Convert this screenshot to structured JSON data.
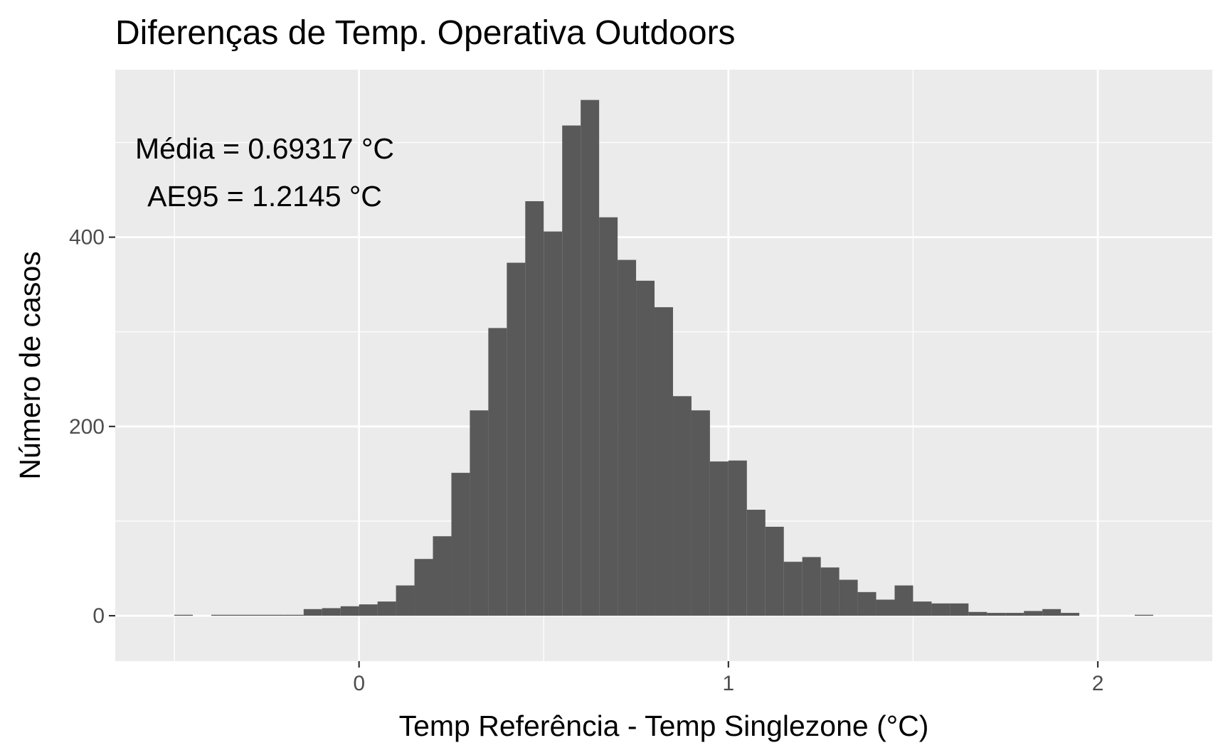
{
  "chart_data": {
    "type": "bar",
    "title": "Diferenças de Temp. Operativa Outdoors",
    "xlabel": "Temp Referência - Temp Singlezone (°C)",
    "ylabel": "Número de casos",
    "xlim": [
      -0.66,
      2.31
    ],
    "ylim": [
      -48,
      577
    ],
    "x_ticks": [
      0,
      1,
      2
    ],
    "x_tick_labels": [
      "0",
      "1",
      "2"
    ],
    "y_ticks": [
      0,
      200,
      400
    ],
    "y_tick_labels": [
      "0",
      "200",
      "400"
    ],
    "bin_width": 0.05,
    "bins_start": [
      -0.5,
      -0.45,
      -0.4,
      -0.35,
      -0.3,
      -0.25,
      -0.2,
      -0.15,
      -0.1,
      -0.05,
      0.0,
      0.05,
      0.1,
      0.15,
      0.2,
      0.25,
      0.3,
      0.35,
      0.4,
      0.45,
      0.5,
      0.55,
      0.6,
      0.65,
      0.7,
      0.75,
      0.8,
      0.85,
      0.9,
      0.95,
      1.0,
      1.05,
      1.1,
      1.15,
      1.2,
      1.25,
      1.3,
      1.35,
      1.4,
      1.45,
      1.5,
      1.55,
      1.6,
      1.65,
      1.7,
      1.75,
      1.8,
      1.85,
      1.9,
      1.95,
      2.0,
      2.05,
      2.1,
      2.15
    ],
    "values": [
      1,
      0,
      1,
      1,
      1,
      1,
      1,
      7,
      8,
      10,
      12,
      15,
      32,
      60,
      84,
      151,
      217,
      304,
      373,
      438,
      406,
      518,
      545,
      421,
      376,
      354,
      326,
      232,
      217,
      163,
      164,
      112,
      94,
      57,
      62,
      51,
      38,
      25,
      17,
      32,
      15,
      13,
      13,
      4,
      3,
      3,
      5,
      7,
      3,
      0,
      0,
      0,
      1,
      0
    ],
    "bar_color": "#595959",
    "panel_color": "#ebebeb",
    "grid": true,
    "annotations": [
      "Média = 0.69317 °C",
      "AE95 = 1.2145 °C"
    ]
  }
}
